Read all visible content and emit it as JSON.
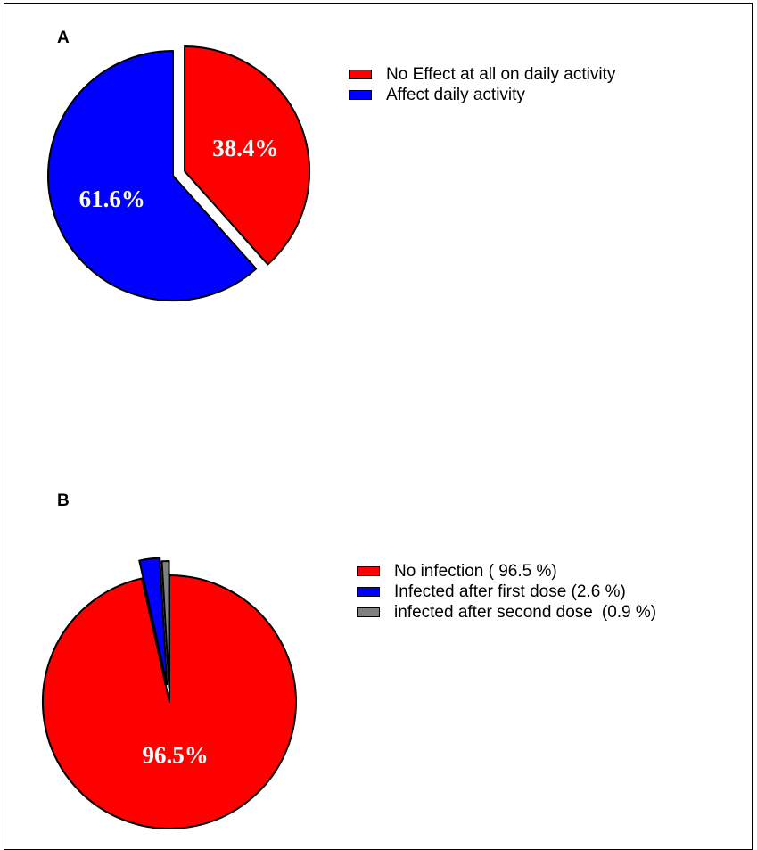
{
  "chart_data": [
    {
      "type": "pie",
      "panel": "A",
      "series": [
        {
          "label": "No Effect at all on daily activity",
          "value": 38.4,
          "value_label": "38.4%",
          "color": "#ff0000",
          "exploded": true
        },
        {
          "label": "Affect daily activity",
          "value": 61.6,
          "value_label": "61.6%",
          "color": "#0000ff",
          "exploded": false
        }
      ],
      "legend": [
        {
          "text": "No Effect at all on daily activity",
          "extra": "",
          "color": "#ff0000"
        },
        {
          "text": "Affect daily activity",
          "extra": "",
          "color": "#0000ff"
        }
      ],
      "legend_position": "right"
    },
    {
      "type": "pie",
      "panel": "B",
      "series": [
        {
          "label": "No infection",
          "value": 96.5,
          "value_label": "96.5%",
          "color": "#ff0000",
          "exploded": false
        },
        {
          "label": "Infected after first dose",
          "value": 2.6,
          "value_label": "",
          "color": "#0000ff",
          "exploded": true
        },
        {
          "label": "infected after second dose",
          "value": 0.9,
          "value_label": "",
          "color": "#808080",
          "exploded": true
        }
      ],
      "legend": [
        {
          "text": "No infection ( 96.5 %)",
          "extra": "",
          "color": "#ff0000"
        },
        {
          "text": "Infected after first dose (2.6 %)",
          "extra": "",
          "color": "#0000ff"
        },
        {
          "text": "infected after second dose",
          "extra": "(0.9 %)",
          "color": "#808080"
        }
      ],
      "legend_position": "right"
    }
  ]
}
